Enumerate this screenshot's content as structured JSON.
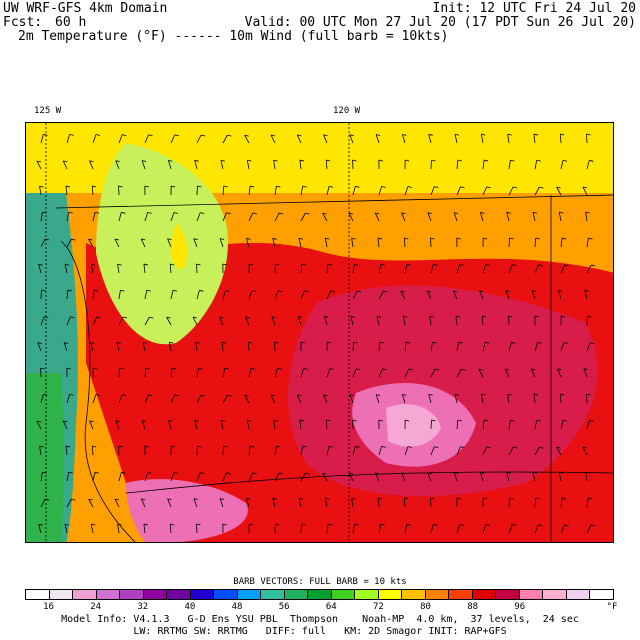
{
  "header": {
    "model": "UW WRF-GFS 4km Domain",
    "init": "Init: 12 UTC Fri 24 Jul 20",
    "forecast_label": "Fcst:",
    "forecast_hours": "60 h",
    "valid": "Valid: 00 UTC Mon 27 Jul 20 (17 PDT Sun 26 Jul 20)",
    "fields": "2m Temperature (°F) ------ 10m Wind (full barb = 10kts)"
  },
  "longitudes": [
    "125 W",
    "120 W"
  ],
  "colorbar": {
    "title": "BARB VECTORS:  FULL BARB = 10 kts",
    "unit": "°F",
    "tick_labels": [
      "16",
      "24",
      "32",
      "40",
      "48",
      "56",
      "64",
      "72",
      "80",
      "88",
      "96"
    ],
    "colors": [
      "#ffffff",
      "#f0e6f0",
      "#f0a0d0",
      "#d070d0",
      "#b040c0",
      "#9000a0",
      "#7000a0",
      "#2000d0",
      "#0050ff",
      "#00a0ff",
      "#30c0a0",
      "#20b060",
      "#00a030",
      "#40d020",
      "#a0ff20",
      "#ffff00",
      "#ffc000",
      "#ff8000",
      "#ff4000",
      "#e00000",
      "#c00040",
      "#ff80b0",
      "#ffb0d0",
      "#f0d0f0",
      "#ffffff"
    ]
  },
  "footer": {
    "line1": "Model Info: V4.1.3   G-D Ens YSU PBL  Thompson    Noah-MP  4.0 km,  37 levels,  24 sec",
    "line2": "LW: RRTMG SW: RRTMG   DIFF: full   KM: 2D Smagor INIT: RAP+GFS"
  },
  "map": {
    "colors": {
      "ocean_green": "#2fb24a",
      "coastal_teal": "#3aa88a",
      "cool_yellowgreen": "#c8f05a",
      "yellow": "#ffe600",
      "orange": "#ffa000",
      "red": "#e81010",
      "crimson": "#d81d4a",
      "pink": "#ee70b4",
      "light_pink": "#f6a8d4"
    }
  }
}
